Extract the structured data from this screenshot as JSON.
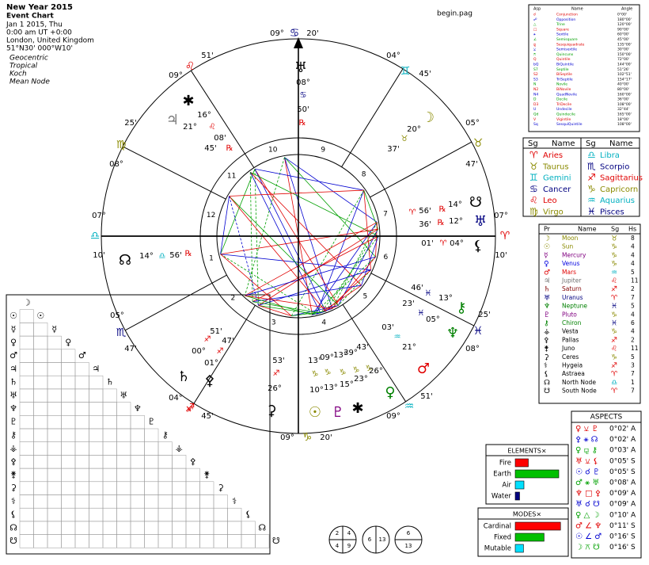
{
  "header": {
    "title": "New Year 2015",
    "subtitle": "Event Chart",
    "lines": [
      "Jan 1 2015, Thu",
      "0:00 am  UT +0:00",
      "London, United Kingdom",
      "51°N30' 000°W10'"
    ],
    "settings": [
      "Geocentric",
      "Tropical",
      "Koch",
      "Mean Node"
    ]
  },
  "file_label": "begin.pag",
  "wheel": {
    "cusps": [
      [
        "07°",
        "♎",
        "10'"
      ],
      [
        "05°",
        "♏",
        "47'"
      ],
      [
        "04°",
        "♐",
        "45'"
      ],
      [
        "09°",
        "♑",
        "20'"
      ],
      [
        "09°",
        "♒",
        "51'"
      ],
      [
        "08°",
        "♓",
        "25'"
      ],
      [
        "07°",
        "♈",
        "10'"
      ],
      [
        "05°",
        "♉",
        "47'"
      ],
      [
        "04°",
        "♊",
        "45'"
      ],
      [
        "09°",
        "♋",
        "20'"
      ],
      [
        "09°",
        "♌",
        "51'"
      ],
      [
        "08°",
        "♍",
        "25'"
      ]
    ],
    "houses": [
      1,
      2,
      3,
      4,
      5,
      6,
      7,
      8,
      9,
      10,
      11,
      12
    ],
    "glyphs": [
      "♅",
      "✱",
      "♃",
      "☽",
      "☋",
      "♅",
      "⚸",
      "☊",
      "⚷",
      "♆",
      "♂",
      "♀",
      "☉",
      "♇",
      "✱",
      "⚳",
      "♄",
      "⚴"
    ],
    "labels": [
      "08°",
      "♋",
      "50'",
      "℞",
      "16°",
      "21°",
      "♌",
      "08'",
      "45'",
      "℞",
      "20°",
      "♉",
      "37'",
      "♈",
      "56'",
      "℞",
      "14°",
      "36'",
      "℞",
      "12°",
      "01'",
      "♈",
      "04°",
      "14°",
      "♎",
      "56'",
      "℞",
      "46'",
      "♓",
      "13°",
      "23'",
      "♓",
      "05°",
      "03'",
      "♒",
      "21°",
      "13°",
      "09°",
      "13°",
      "39°",
      "43'",
      "♑",
      "♑",
      "♑",
      "♑",
      "♑",
      "10°",
      "13°",
      "15°",
      "23°",
      "26°",
      "53'",
      "♐",
      "26°",
      "51'",
      "47'",
      "♐",
      "♐",
      "00°",
      "01°",
      "♐"
    ]
  },
  "aspect_legend": {
    "headers": [
      "Asp",
      "Name",
      "Angle"
    ],
    "rows": [
      [
        "☌",
        "Conjunction",
        "0°00'"
      ],
      [
        "☍",
        "Opposition",
        "180°00'"
      ],
      [
        "△",
        "Trine",
        "120°00'"
      ],
      [
        "□",
        "Square",
        "90°00'"
      ],
      [
        "⚹",
        "Sextile",
        "60°00'"
      ],
      [
        "∠",
        "Semisquare",
        "45°00'"
      ],
      [
        "⚼",
        "Sesquiquadrate",
        "135°00'"
      ],
      [
        "⚺",
        "Semisextile",
        "30°00'"
      ],
      [
        "⚻",
        "Quincunx",
        "150°00'"
      ],
      [
        "Q",
        "Quintile",
        "72°00'"
      ],
      [
        "bQ",
        "BiQuintile",
        "144°00'"
      ],
      [
        "S7",
        "Septile",
        "51°26'"
      ],
      [
        "S2",
        "BiSeptile",
        "102°51'"
      ],
      [
        "S3",
        "TriSeptile",
        "154°17'"
      ],
      [
        "N",
        "Novile",
        "40°00'"
      ],
      [
        "N2",
        "BiNovile",
        "80°00'"
      ],
      [
        "N4",
        "QuadNovile",
        "160°00'"
      ],
      [
        "D",
        "Decile",
        "36°00'"
      ],
      [
        "D3",
        "TriDecile",
        "108°00'"
      ],
      [
        "U",
        "Undecile",
        "32°44'"
      ],
      [
        "Qd",
        "Quindecile",
        "165°00'"
      ],
      [
        "V",
        "Vigintile",
        "18°00'"
      ],
      [
        "Sq",
        "SesquiQuintile",
        "108°00'"
      ]
    ]
  },
  "signs_table": {
    "headers": [
      "Sg",
      "Name",
      "Sg",
      "Name"
    ],
    "rows": [
      {
        "glyph": "♈",
        "name": "Aries",
        "color": "#e00000"
      },
      {
        "glyph": "♉",
        "name": "Taurus",
        "color": "#8a8a00"
      },
      {
        "glyph": "♊",
        "name": "Gemini",
        "color": "#00b0c0"
      },
      {
        "glyph": "♋",
        "name": "Cancer",
        "color": "#000080"
      },
      {
        "glyph": "♌",
        "name": "Leo",
        "color": "#e00000"
      },
      {
        "glyph": "♍",
        "name": "Virgo",
        "color": "#8a8a00"
      },
      {
        "glyph": "♎",
        "name": "Libra",
        "color": "#00b0c0"
      },
      {
        "glyph": "♏",
        "name": "Scorpio",
        "color": "#000080"
      },
      {
        "glyph": "♐",
        "name": "Sagittarius",
        "color": "#e00000"
      },
      {
        "glyph": "♑",
        "name": "Capricorn",
        "color": "#8a8a00"
      },
      {
        "glyph": "♒",
        "name": "Aquarius",
        "color": "#00b0c0"
      },
      {
        "glyph": "♓",
        "name": "Pisces",
        "color": "#000080"
      }
    ]
  },
  "planets_table": {
    "headers": [
      "Pr",
      "Name",
      "Sg",
      "Hs"
    ],
    "rows": [
      {
        "glyph": "☽",
        "name": "Moon",
        "sign": "♉",
        "house": 8,
        "color": "#8a8a00"
      },
      {
        "glyph": "☉",
        "name": "Sun",
        "sign": "♑",
        "house": 4,
        "color": "#8a8a00"
      },
      {
        "glyph": "☿",
        "name": "Mercury",
        "sign": "♑",
        "house": 4,
        "color": "#800080"
      },
      {
        "glyph": "♀",
        "name": "Venus",
        "sign": "♑",
        "house": 4,
        "color": "#0000e0"
      },
      {
        "glyph": "♂",
        "name": "Mars",
        "sign": "♒",
        "house": 5,
        "color": "#e00000"
      },
      {
        "glyph": "♃",
        "name": "Jupiter",
        "sign": "♌",
        "house": 11,
        "color": "#707070"
      },
      {
        "glyph": "♄",
        "name": "Saturn",
        "sign": "♐",
        "house": 2,
        "color": "#800000"
      },
      {
        "glyph": "♅",
        "name": "Uranus",
        "sign": "♈",
        "house": 7,
        "color": "#000080"
      },
      {
        "glyph": "♆",
        "name": "Neptune",
        "sign": "♓",
        "house": 5,
        "color": "#008000"
      },
      {
        "glyph": "♇",
        "name": "Pluto",
        "sign": "♑",
        "house": 4,
        "color": "#800080"
      },
      {
        "glyph": "⚷",
        "name": "Chiron",
        "sign": "♓",
        "house": 6,
        "color": "#008000"
      },
      {
        "glyph": "⚶",
        "name": "Vesta",
        "sign": "♑",
        "house": 4,
        "color": "#000000"
      },
      {
        "glyph": "⚴",
        "name": "Pallas",
        "sign": "♐",
        "house": 2,
        "color": "#000000"
      },
      {
        "glyph": "⚵",
        "name": "Juno",
        "sign": "♌",
        "house": 11,
        "color": "#000000"
      },
      {
        "glyph": "⚳",
        "name": "Ceres",
        "sign": "♑",
        "house": 5,
        "color": "#000000"
      },
      {
        "glyph": "⚕",
        "name": "Hygeia",
        "sign": "♐",
        "house": 3,
        "color": "#000000"
      },
      {
        "glyph": "⚸",
        "name": "Astraea",
        "sign": "♈",
        "house": 7,
        "color": "#000000"
      },
      {
        "glyph": "☊",
        "name": "North Node",
        "sign": "♎",
        "house": 1,
        "color": "#000000"
      },
      {
        "glyph": "☋",
        "name": "South Node",
        "sign": "♈",
        "house": 7,
        "color": "#000000"
      }
    ]
  },
  "aspects": {
    "title": "ASPECTS",
    "rows": [
      [
        "♀ ⚺ ♇",
        "0°02' A"
      ],
      [
        "⚴ ⚹ ☊",
        "0°02' A"
      ],
      [
        "♀ ⚼ ⚷",
        "0°03' A"
      ],
      [
        "♅ ⚺ ⚸",
        "0°05' S"
      ],
      [
        "☉ ☌ ♇",
        "0°05' S"
      ],
      [
        "♂ ⚹ ♅",
        "0°08' A"
      ],
      [
        "♆ □ ⚴",
        "0°09' A"
      ],
      [
        "♅ ☌ ☋",
        "0°09' A"
      ],
      [
        "♀ △ ☽",
        "0°10' A"
      ],
      [
        "♂ ∠ ♆",
        "0°11' S"
      ],
      [
        "☉ ∠ ♂",
        "0°16' S"
      ],
      [
        "☽ ⚻ ☋",
        "0°16' S"
      ]
    ]
  },
  "elements": {
    "title": "ELEMENTS×",
    "categories": [
      "Fire",
      "Earth",
      "Air",
      "Water"
    ],
    "values": [
      3,
      10,
      2,
      1
    ],
    "colors": [
      "#ff0000",
      "#00c000",
      "#00e0ff",
      "#000080"
    ]
  },
  "modes": {
    "title": "MODES×",
    "categories": [
      "Cardinal",
      "Fixed",
      "Mutable"
    ],
    "values": [
      11,
      7,
      2
    ],
    "colors": [
      "#ff0000",
      "#00c000",
      "#00e0ff"
    ]
  },
  "aspect_grid": {
    "glyphs": [
      "☽",
      "☉",
      "☿",
      "♀",
      "♂",
      "♃",
      "♄",
      "♅",
      "♆",
      "♇",
      "⚷",
      "⚶",
      "⚴",
      "⚵",
      "⚳",
      "⚕",
      "⚸",
      "☊",
      "☋"
    ]
  },
  "circles": {
    "quadrants": [
      2,
      4,
      4,
      9
    ],
    "halves_v": [
      6,
      13
    ],
    "halves_h": [
      6,
      13
    ]
  }
}
